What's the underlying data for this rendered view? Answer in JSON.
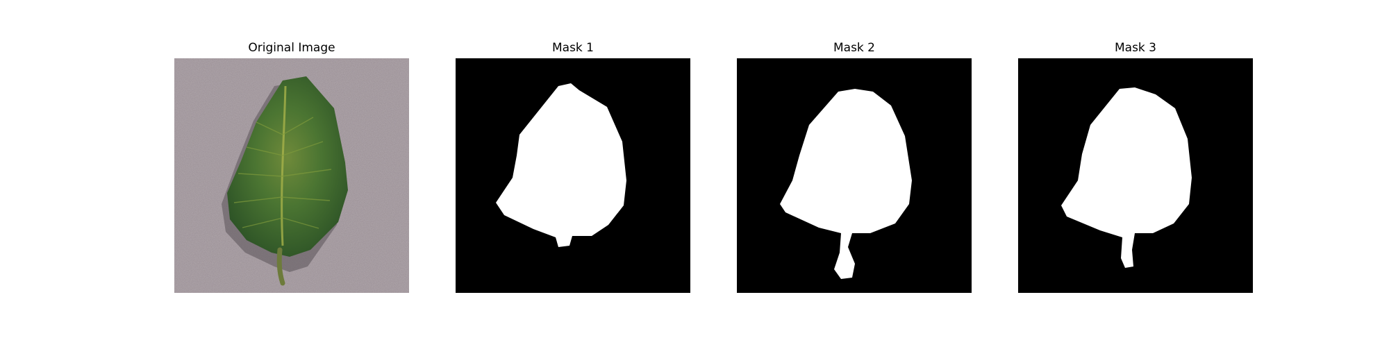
{
  "panels": [
    {
      "title": "Original Image"
    },
    {
      "title": "Mask 1"
    },
    {
      "title": "Mask 2"
    },
    {
      "title": "Mask 3"
    }
  ],
  "colors": {
    "background_surface": "#9a8f95",
    "leaf_green": "#3f6a2c",
    "leaf_highlight": "#9aa83c",
    "mask_background": "#000000",
    "mask_foreground": "#ffffff"
  }
}
